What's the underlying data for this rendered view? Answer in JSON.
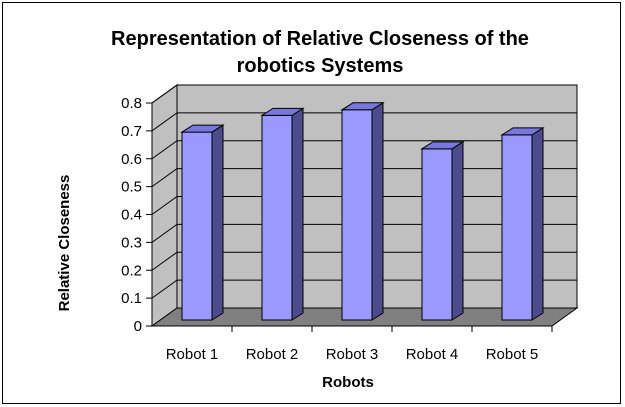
{
  "chart_data": {
    "type": "bar",
    "title_lines": [
      "Representation of Relative Closeness of the",
      "robotics Systems"
    ],
    "xlabel": "Robots",
    "ylabel": "Relative Closeness",
    "categories": [
      "Robot 1",
      "Robot 2",
      "Robot 3",
      "Robot 4",
      "Robot 5"
    ],
    "values": [
      0.71,
      0.77,
      0.79,
      0.65,
      0.7
    ],
    "ylim": [
      0,
      0.8
    ],
    "yticks": [
      "0",
      "0.1",
      "0.2",
      "0.3",
      "0.4",
      "0.5",
      "0.6",
      "0.7",
      "0.8"
    ],
    "grid": true,
    "legend": "none",
    "colors": {
      "bar_front": "#9999ff",
      "bar_side": "#4c4c8c",
      "bar_top": "#7777dd",
      "wall": "#c0c0c0",
      "floor": "#808080"
    }
  }
}
